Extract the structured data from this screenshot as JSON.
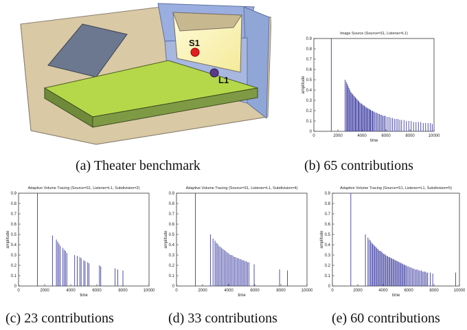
{
  "panels": [
    {
      "id": "a",
      "caption": "(a)  Theater benchmark"
    },
    {
      "id": "b",
      "caption": "(b)  65 contributions"
    },
    {
      "id": "c",
      "caption": "(c)  23 contributions"
    },
    {
      "id": "d",
      "caption": "(d)  33 contributions"
    },
    {
      "id": "e",
      "caption": "(e)  60 contributions"
    }
  ],
  "scene": {
    "source_label": "S1",
    "listener_label": "L1",
    "colors": {
      "source": "#e02020",
      "listener": "#5a3a8a",
      "stage": "#b5d84a",
      "wall_blue": "#8fa6d6",
      "wall_tan": "#d9c9a4"
    }
  },
  "chart_data": [
    {
      "type": "bar",
      "title": "Image Source (Source=S1, Listener=L1)",
      "xlabel": "time",
      "ylabel": "amplitude",
      "xlim": [
        0,
        10000
      ],
      "ylim": [
        0,
        0.9
      ],
      "xticks": [
        0,
        2000,
        4000,
        6000,
        8000,
        10000
      ],
      "yticks": [
        0,
        0.1,
        0.2,
        0.3,
        0.4,
        0.5,
        0.6,
        0.7,
        0.8,
        0.9
      ],
      "color": "#3a3aa0",
      "x": [
        1450,
        2600,
        2700,
        2780,
        2850,
        2920,
        3000,
        3080,
        3150,
        3220,
        3300,
        3380,
        3450,
        3520,
        3600,
        3680,
        3750,
        3820,
        3900,
        3980,
        4050,
        4120,
        4200,
        4280,
        4350,
        4420,
        4500,
        4580,
        4650,
        4720,
        4800,
        4880,
        4950,
        5050,
        5150,
        5250,
        5350,
        5450,
        5550,
        5650,
        5750,
        5850,
        5950,
        6100,
        6250,
        6400,
        6550,
        6700,
        6850,
        7000,
        7150,
        7300,
        7500,
        7700,
        7900,
        8100,
        8300,
        8500,
        8700,
        8900,
        9100,
        9300,
        9500,
        9700,
        9850
      ],
      "values": [
        0.9,
        0.5,
        0.48,
        0.46,
        0.44,
        0.42,
        0.4,
        0.38,
        0.37,
        0.36,
        0.35,
        0.34,
        0.33,
        0.32,
        0.31,
        0.3,
        0.29,
        0.28,
        0.27,
        0.27,
        0.26,
        0.25,
        0.25,
        0.24,
        0.23,
        0.23,
        0.22,
        0.22,
        0.21,
        0.21,
        0.2,
        0.2,
        0.19,
        0.19,
        0.18,
        0.18,
        0.17,
        0.17,
        0.16,
        0.16,
        0.15,
        0.15,
        0.15,
        0.14,
        0.14,
        0.13,
        0.13,
        0.12,
        0.12,
        0.12,
        0.11,
        0.11,
        0.11,
        0.1,
        0.1,
        0.1,
        0.09,
        0.09,
        0.09,
        0.09,
        0.08,
        0.08,
        0.08,
        0.08,
        0.07
      ]
    },
    {
      "type": "bar",
      "title": "Adaptive Volume Tracing (Source=S1, Listener=L1, Subdivision=2)",
      "xlabel": "time",
      "ylabel": "amplitude",
      "xlim": [
        0,
        10000
      ],
      "ylim": [
        0,
        0.9
      ],
      "xticks": [
        0,
        2000,
        4000,
        6000,
        8000,
        10000
      ],
      "yticks": [
        0,
        0.1,
        0.2,
        0.3,
        0.4,
        0.5,
        0.6,
        0.7,
        0.8,
        0.9
      ],
      "color": "#3a3aa0",
      "x": [
        1450,
        2600,
        2900,
        3000,
        3100,
        3200,
        3400,
        3500,
        3600,
        3700,
        4300,
        4500,
        4700,
        4800,
        5000,
        5100,
        5300,
        5400,
        6200,
        6300,
        7400,
        7600,
        8000
      ],
      "values": [
        0.9,
        0.49,
        0.45,
        0.43,
        0.41,
        0.39,
        0.37,
        0.35,
        0.34,
        0.32,
        0.3,
        0.29,
        0.28,
        0.27,
        0.25,
        0.24,
        0.23,
        0.22,
        0.2,
        0.19,
        0.17,
        0.16,
        0.15
      ]
    },
    {
      "type": "bar",
      "title": "Adaptive Volume Tracing (Source=S1, Listener=L1, Subdivision=4)",
      "xlabel": "time",
      "ylabel": "amplitude",
      "xlim": [
        0,
        10000
      ],
      "ylim": [
        0,
        0.9
      ],
      "xticks": [
        0,
        2000,
        4000,
        6000,
        8000,
        10000
      ],
      "yticks": [
        0,
        0.1,
        0.2,
        0.3,
        0.4,
        0.5,
        0.6,
        0.7,
        0.8,
        0.9
      ],
      "color": "#3a3aa0",
      "x": [
        1450,
        2600,
        2800,
        2950,
        3050,
        3150,
        3250,
        3350,
        3450,
        3550,
        3650,
        3750,
        3850,
        3950,
        4050,
        4150,
        4250,
        4350,
        4450,
        4550,
        4650,
        4750,
        4850,
        4950,
        5050,
        5150,
        5250,
        5350,
        5450,
        5550,
        5950,
        7900,
        8500
      ],
      "values": [
        0.9,
        0.5,
        0.46,
        0.44,
        0.42,
        0.41,
        0.39,
        0.38,
        0.37,
        0.36,
        0.35,
        0.34,
        0.33,
        0.32,
        0.31,
        0.3,
        0.3,
        0.29,
        0.28,
        0.28,
        0.27,
        0.27,
        0.26,
        0.26,
        0.25,
        0.25,
        0.24,
        0.24,
        0.23,
        0.23,
        0.21,
        0.16,
        0.15
      ]
    },
    {
      "type": "bar",
      "title": "Adaptive Volume Tracing (Source=S1, Listener=L1, Subdivision=5)",
      "xlabel": "time",
      "ylabel": "amplitude",
      "xlim": [
        0,
        10000
      ],
      "ylim": [
        0,
        0.9
      ],
      "xticks": [
        0,
        2000,
        4000,
        6000,
        8000,
        10000
      ],
      "yticks": [
        0,
        0.1,
        0.2,
        0.3,
        0.4,
        0.5,
        0.6,
        0.7,
        0.8,
        0.9
      ],
      "color": "#3a3aa0",
      "x": [
        1450,
        2600,
        2800,
        2900,
        3000,
        3080,
        3160,
        3240,
        3320,
        3400,
        3480,
        3560,
        3640,
        3720,
        3800,
        3880,
        3960,
        4040,
        4120,
        4200,
        4280,
        4360,
        4440,
        4520,
        4600,
        4680,
        4760,
        4840,
        4920,
        5000,
        5080,
        5160,
        5240,
        5320,
        5400,
        5480,
        5560,
        5640,
        5720,
        5800,
        5900,
        6000,
        6100,
        6200,
        6300,
        6400,
        6500,
        6600,
        6700,
        6800,
        6900,
        7000,
        7100,
        7200,
        7300,
        7400,
        7500,
        7700,
        7900,
        9700
      ],
      "values": [
        0.9,
        0.5,
        0.47,
        0.45,
        0.44,
        0.42,
        0.41,
        0.4,
        0.39,
        0.38,
        0.37,
        0.36,
        0.35,
        0.34,
        0.34,
        0.33,
        0.32,
        0.31,
        0.31,
        0.3,
        0.29,
        0.29,
        0.28,
        0.28,
        0.27,
        0.27,
        0.26,
        0.26,
        0.25,
        0.25,
        0.24,
        0.24,
        0.23,
        0.23,
        0.22,
        0.22,
        0.21,
        0.21,
        0.2,
        0.2,
        0.19,
        0.19,
        0.18,
        0.18,
        0.17,
        0.17,
        0.16,
        0.16,
        0.16,
        0.15,
        0.15,
        0.15,
        0.14,
        0.14,
        0.14,
        0.13,
        0.13,
        0.13,
        0.12,
        0.13
      ]
    }
  ]
}
